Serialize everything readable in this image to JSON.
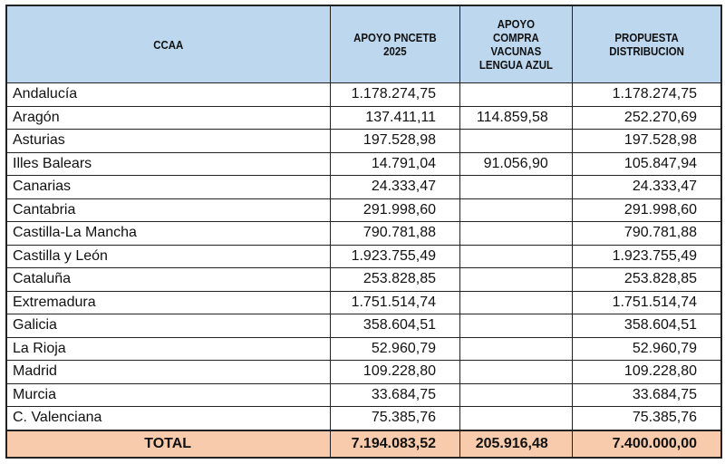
{
  "headers": [
    "CCAA",
    "APOYO PNCETB 2025",
    "APOYO COMPRA VACUNAS LENGUA AZUL",
    "PROPUESTA DISTRIBUCION"
  ],
  "rows": [
    {
      "ccaa": "Andalucía",
      "pncetb": "1.178.274,75",
      "vacunas": "",
      "propuesta": "1.178.274,75"
    },
    {
      "ccaa": "Aragón",
      "pncetb": "137.411,11",
      "vacunas": "114.859,58",
      "propuesta": "252.270,69"
    },
    {
      "ccaa": "Asturias",
      "pncetb": "197.528,98",
      "vacunas": "",
      "propuesta": "197.528,98"
    },
    {
      "ccaa": "Illes Balears",
      "pncetb": "14.791,04",
      "vacunas": "91.056,90",
      "propuesta": "105.847,94"
    },
    {
      "ccaa": "Canarias",
      "pncetb": "24.333,47",
      "vacunas": "",
      "propuesta": "24.333,47"
    },
    {
      "ccaa": "Cantabria",
      "pncetb": "291.998,60",
      "vacunas": "",
      "propuesta": "291.998,60"
    },
    {
      "ccaa": "Castilla-La Mancha",
      "pncetb": "790.781,88",
      "vacunas": "",
      "propuesta": "790.781,88"
    },
    {
      "ccaa": "Castilla y León",
      "pncetb": "1.923.755,49",
      "vacunas": "",
      "propuesta": "1.923.755,49"
    },
    {
      "ccaa": "Cataluña",
      "pncetb": "253.828,85",
      "vacunas": "",
      "propuesta": "253.828,85"
    },
    {
      "ccaa": "Extremadura",
      "pncetb": "1.751.514,74",
      "vacunas": "",
      "propuesta": "1.751.514,74"
    },
    {
      "ccaa": "Galicia",
      "pncetb": "358.604,51",
      "vacunas": "",
      "propuesta": "358.604,51"
    },
    {
      "ccaa": "La Rioja",
      "pncetb": "52.960,79",
      "vacunas": "",
      "propuesta": "52.960,79"
    },
    {
      "ccaa": "Madrid",
      "pncetb": "109.228,80",
      "vacunas": "",
      "propuesta": "109.228,80"
    },
    {
      "ccaa": "Murcia",
      "pncetb": "33.684,75",
      "vacunas": "",
      "propuesta": "33.684,75"
    },
    {
      "ccaa": "C. Valenciana",
      "pncetb": "75.385,76",
      "vacunas": "",
      "propuesta": "75.385,76"
    }
  ],
  "total": {
    "ccaa": "TOTAL",
    "pncetb": "7.194.083,52",
    "vacunas": "205.916,48",
    "propuesta": "7.400.000,00"
  },
  "colors": {
    "header_bg": "#bdd7ee",
    "total_bg": "#f8cbad"
  }
}
